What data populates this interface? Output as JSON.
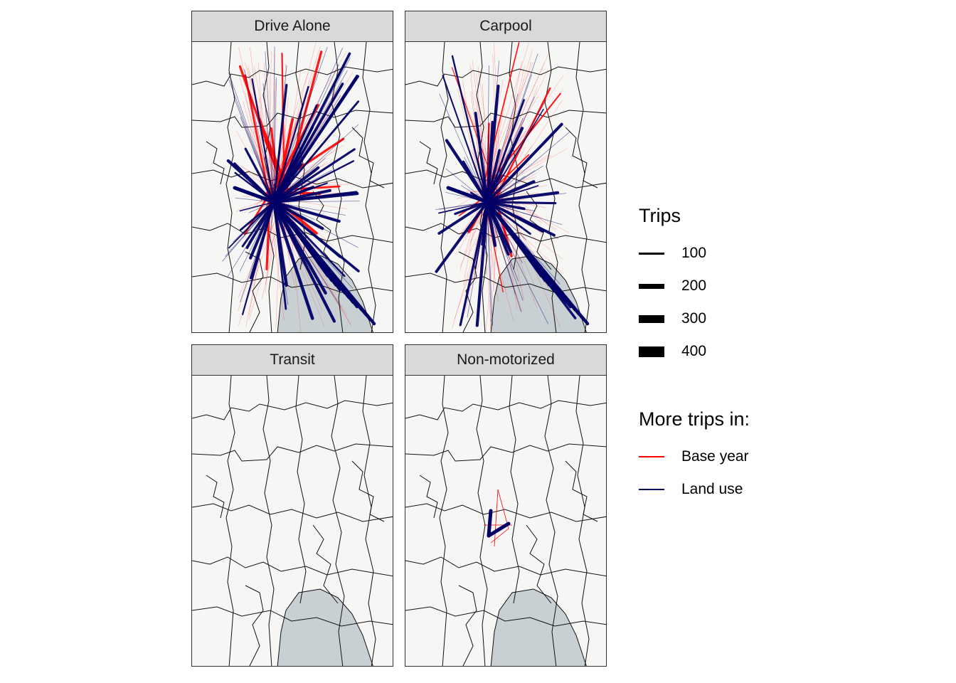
{
  "facets": [
    {
      "title": "Drive Alone",
      "intensity": 1.0
    },
    {
      "title": "Carpool",
      "intensity": 1.0
    },
    {
      "title": "Transit",
      "intensity": 0.0
    },
    {
      "title": "Non-motorized",
      "intensity": 0.15
    }
  ],
  "legend": {
    "size_title": "Trips",
    "size_items": [
      {
        "label": "100",
        "value": 100
      },
      {
        "label": "200",
        "value": 200
      },
      {
        "label": "300",
        "value": 300
      },
      {
        "label": "400",
        "value": 400
      }
    ],
    "color_title": "More trips in:",
    "color_items": [
      {
        "label": "Base year",
        "color": "#ff0000"
      },
      {
        "label": "Land use",
        "color": "#000066"
      }
    ]
  },
  "colors": {
    "base_year": "#ff0000",
    "land_use": "#000066",
    "water": "#c9d0d4",
    "land": "#f6f6f4",
    "boundary": "#111111"
  }
}
